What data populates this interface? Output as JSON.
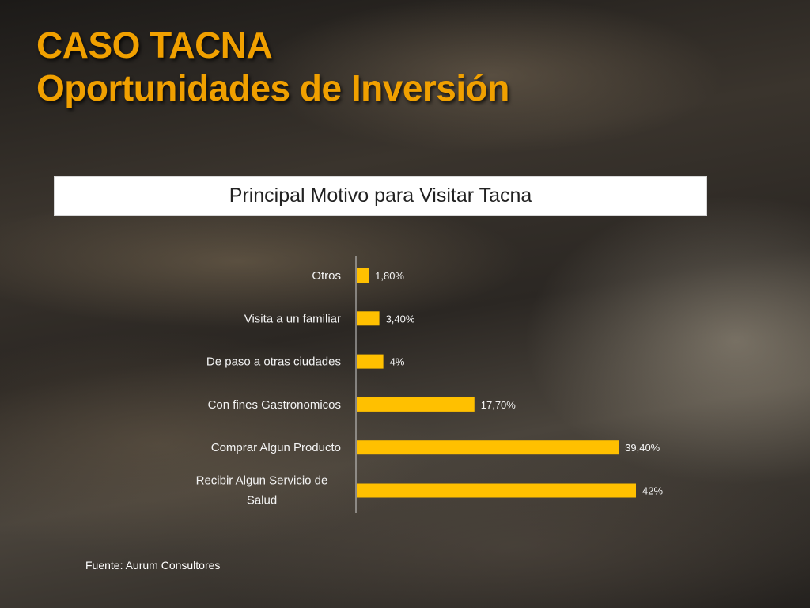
{
  "slide": {
    "title_line1": "CASO TACNA",
    "title_line2": "Oportunidades de Inversión",
    "source": "Fuente: Aurum Consultores"
  },
  "colors": {
    "title": "#f0a000",
    "bar": "#ffc000",
    "box_bg": "#ffffff"
  },
  "chart_data": {
    "type": "bar",
    "orientation": "horizontal",
    "title": "Principal Motivo para Visitar Tacna",
    "categories": [
      "Otros",
      "Visita a un familiar",
      "De paso a otras ciudades",
      "Con fines Gastronomicos",
      "Comprar Algun Producto",
      "Recibir Algun Servicio de Salud"
    ],
    "category_lines": [
      [
        "Otros"
      ],
      [
        "Visita a un familiar"
      ],
      [
        "De paso a otras ciudades"
      ],
      [
        "Con fines Gastronomicos"
      ],
      [
        "Comprar Algun Producto"
      ],
      [
        "Recibir Algun Servicio de",
        "Salud"
      ]
    ],
    "values": [
      1.8,
      3.4,
      4,
      17.7,
      39.4,
      42
    ],
    "data_labels": [
      "1,80%",
      "3,40%",
      "4%",
      "17,70%",
      "39,40%",
      "42%"
    ],
    "xlim": [
      0,
      42
    ],
    "grid": false,
    "legend": "none"
  }
}
